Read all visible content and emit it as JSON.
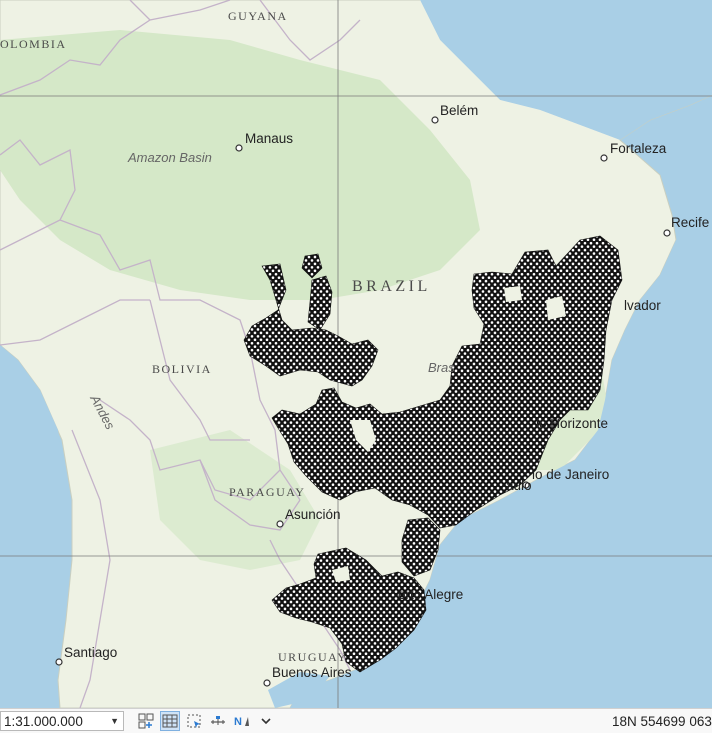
{
  "map": {
    "labels": {
      "guyana": "GUYANA",
      "colombia": "OLOMBIA",
      "belem": "Belém",
      "manaus": "Manaus",
      "fortaleza": "Fortaleza",
      "amazon_basin": "Amazon Basin",
      "recife": "Recife",
      "brazil": "BRAZIL",
      "salvador": "lvador",
      "bolivia": "BOLIVIA",
      "brasilia": "Bras",
      "andes": "Andes",
      "belo_horizonte": "lo Horizonte",
      "rio": "io de Janeiro",
      "sao_paulo": "aulo",
      "paraguay": "PARAGUAY",
      "asuncion": "Asunción",
      "porto_alegre": "orto Alegre",
      "santiago": "Santiago",
      "uruguay": "URUGUAY",
      "buenos_aires": "Buenos Aires"
    },
    "colors": {
      "ocean": "#a9cfe6",
      "land": "#eef2e4",
      "forest": "#d5e8c8",
      "graticule": "#7a7a7a",
      "hex_fill": "#ffffff",
      "hex_stroke": "#111111"
    }
  },
  "statusbar": {
    "scale": "1:31.000.000",
    "coordinates": "18N 554699 063",
    "icons": [
      "grid-layout-icon",
      "table-view-icon",
      "select-features-icon",
      "measure-icon",
      "north-arrow-icon",
      "chevron-down-icon"
    ]
  }
}
